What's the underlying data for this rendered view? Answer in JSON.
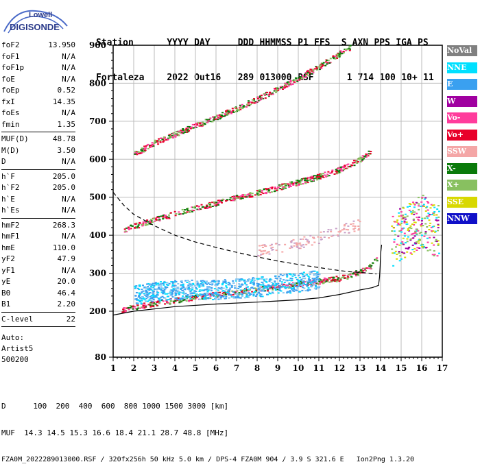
{
  "logo": {
    "top": "Lowell",
    "bottom": "DIGISONDE"
  },
  "header": {
    "labels": [
      "Station",
      "YYYY",
      "DAY",
      "DDD",
      "HHMMSS",
      "P1",
      "FFS",
      "S",
      "AXN",
      "PPS",
      "IGA",
      "PS"
    ],
    "values": [
      "Fortaleza",
      "2022",
      "Out16",
      "289",
      "013000",
      "RSF",
      "1",
      "714",
      "100",
      "10+",
      "11"
    ]
  },
  "params": [
    [
      {
        "name": "foF2",
        "value": "13.950"
      },
      {
        "name": "foF1",
        "value": "N/A"
      },
      {
        "name": "foF1p",
        "value": "N/A"
      },
      {
        "name": "foE",
        "value": "N/A"
      },
      {
        "name": "foEp",
        "value": "0.52"
      },
      {
        "name": "fxI",
        "value": "14.35"
      },
      {
        "name": "foEs",
        "value": "N/A"
      },
      {
        "name": "fmin",
        "value": "1.35"
      }
    ],
    [
      {
        "name": "MUF(D)",
        "value": "48.78"
      },
      {
        "name": "M(D)",
        "value": "3.50"
      },
      {
        "name": "D",
        "value": "N/A"
      }
    ],
    [
      {
        "name": "h`F",
        "value": "205.0"
      },
      {
        "name": "h`F2",
        "value": "205.0"
      },
      {
        "name": "h`E",
        "value": "N/A"
      },
      {
        "name": "h`Es",
        "value": "N/A"
      }
    ],
    [
      {
        "name": "hmF2",
        "value": "268.3"
      },
      {
        "name": "hmF1",
        "value": "N/A"
      },
      {
        "name": "hmE",
        "value": "110.0"
      },
      {
        "name": "yF2",
        "value": "47.9"
      },
      {
        "name": "yF1",
        "value": "N/A"
      },
      {
        "name": "yE",
        "value": "20.0"
      },
      {
        "name": "B0",
        "value": "46.4"
      },
      {
        "name": "B1",
        "value": "2.20"
      }
    ],
    [
      {
        "name": "C-level",
        "value": "22"
      }
    ]
  ],
  "autoscale": {
    "label": "Auto:",
    "artist": "Artist5",
    "version": "500200"
  },
  "legend": [
    {
      "label": "NoVal",
      "color": "#808080"
    },
    {
      "label": "NNE",
      "color": "#00e0ff"
    },
    {
      "label": "E",
      "color": "#3aa0f0"
    },
    {
      "label": "W",
      "color": "#a000a0"
    },
    {
      "label": "Vo-",
      "color": "#ff3c9c"
    },
    {
      "label": "Vo+",
      "color": "#e8002a"
    },
    {
      "label": "SSW",
      "color": "#f4a6a6"
    },
    {
      "label": "X-",
      "color": "#0a7a0a"
    },
    {
      "label": "X+",
      "color": "#88c060"
    },
    {
      "label": "SSE",
      "color": "#d8d800"
    },
    {
      "label": "NNW",
      "color": "#1010c8"
    }
  ],
  "footer": {
    "line1": "D      100  200  400  600  800 1000 1500 3000 [km]",
    "line2": "MUF  14.3 14.5 15.3 16.6 18.4 21.1 28.7 48.8 [MHz]",
    "line3": "FZA0M_2022289013000.RSF / 320fx256h 50 kHz 5.0 km / DPS-4 FZA0M 904 / 3.9 S 321.6 E   Ion2Png 1.3.20"
  },
  "chart_data": {
    "type": "scatter",
    "title": "",
    "xlabel": "",
    "ylabel": "",
    "xlim": [
      1,
      17
    ],
    "ylim": [
      80,
      900
    ],
    "x_ticks": [
      1,
      2,
      3,
      4,
      5,
      6,
      7,
      8,
      9,
      10,
      11,
      12,
      13,
      14,
      15,
      16,
      17
    ],
    "y_ticks": [
      80,
      200,
      300,
      400,
      500,
      600,
      700,
      800,
      900
    ],
    "grid": true,
    "series": [
      {
        "name": "Vo+",
        "color": "#e8002a",
        "trace": "F2 O-trace 1st hop",
        "points": [
          [
            1.4,
            206
          ],
          [
            2,
            212
          ],
          [
            3,
            222
          ],
          [
            4,
            230
          ],
          [
            5,
            238
          ],
          [
            6,
            245
          ],
          [
            7,
            252
          ],
          [
            8,
            259
          ],
          [
            9,
            266
          ],
          [
            10,
            273
          ],
          [
            11,
            280
          ],
          [
            12,
            288
          ],
          [
            12.5,
            296
          ],
          [
            13,
            306
          ],
          [
            13.5,
            320
          ],
          [
            13.8,
            340
          ]
        ]
      },
      {
        "name": "Vo+",
        "color": "#e8002a",
        "trace": "F2 O-trace 2nd hop",
        "points": [
          [
            1.5,
            415
          ],
          [
            2,
            425
          ],
          [
            3,
            442
          ],
          [
            4,
            458
          ],
          [
            5,
            472
          ],
          [
            6,
            486
          ],
          [
            7,
            500
          ],
          [
            8,
            513
          ],
          [
            9,
            527
          ],
          [
            10,
            541
          ],
          [
            11,
            556
          ],
          [
            12,
            574
          ],
          [
            13,
            601
          ],
          [
            13.5,
            623
          ]
        ]
      },
      {
        "name": "Vo+",
        "color": "#e8002a",
        "trace": "F2 O-trace 3rd hop",
        "points": [
          [
            2,
            615
          ],
          [
            3,
            645
          ],
          [
            4,
            667
          ],
          [
            5,
            690
          ],
          [
            6,
            712
          ],
          [
            7,
            735
          ],
          [
            8,
            760
          ],
          [
            9,
            787
          ],
          [
            10,
            815
          ],
          [
            11,
            845
          ],
          [
            12,
            880
          ],
          [
            12.5,
            895
          ]
        ]
      },
      {
        "name": "E",
        "color": "#3aa0f0",
        "trace": "spread F",
        "points": [
          [
            2,
            245
          ],
          [
            3,
            252
          ],
          [
            4,
            258
          ],
          [
            5,
            258
          ],
          [
            6,
            258
          ],
          [
            7,
            262
          ],
          [
            8,
            265
          ],
          [
            9,
            272
          ],
          [
            10,
            278
          ],
          [
            11,
            285
          ]
        ]
      },
      {
        "name": "W",
        "color": "#a000a0",
        "trace": "oblique echoes",
        "points": [
          [
            14.5,
            380
          ],
          [
            15,
            410
          ],
          [
            15.5,
            420
          ],
          [
            16,
            440
          ],
          [
            16.5,
            410
          ],
          [
            16.8,
            420
          ]
        ]
      },
      {
        "name": "SSW",
        "color": "#f4a6a6",
        "trace": "sporadic",
        "points": [
          [
            8,
            360
          ],
          [
            9,
            370
          ],
          [
            10,
            380
          ],
          [
            11,
            395
          ],
          [
            12,
            415
          ],
          [
            13,
            430
          ]
        ]
      }
    ],
    "profile_curves": [
      {
        "style": "solid",
        "color": "#000",
        "points": [
          [
            1,
            190
          ],
          [
            2,
            200
          ],
          [
            4,
            212
          ],
          [
            6,
            219
          ],
          [
            8,
            224
          ],
          [
            10,
            230
          ],
          [
            11,
            235
          ],
          [
            12,
            244
          ],
          [
            13,
            256
          ],
          [
            13.6,
            262
          ],
          [
            13.9,
            268
          ],
          [
            13.95,
            290
          ],
          [
            13.98,
            320
          ],
          [
            14,
            350
          ],
          [
            14.05,
            375
          ]
        ]
      },
      {
        "style": "dashed",
        "color": "#000",
        "points": [
          [
            1,
            513
          ],
          [
            1.5,
            480
          ],
          [
            2,
            455
          ],
          [
            3,
            425
          ],
          [
            4,
            400
          ],
          [
            5,
            382
          ],
          [
            6,
            368
          ],
          [
            7,
            355
          ],
          [
            8,
            343
          ],
          [
            9,
            332
          ],
          [
            10,
            323
          ],
          [
            11,
            315
          ],
          [
            12,
            307
          ],
          [
            12.5,
            304
          ],
          [
            13,
            302
          ],
          [
            13.5,
            300
          ],
          [
            13.8,
            298
          ]
        ]
      }
    ]
  }
}
